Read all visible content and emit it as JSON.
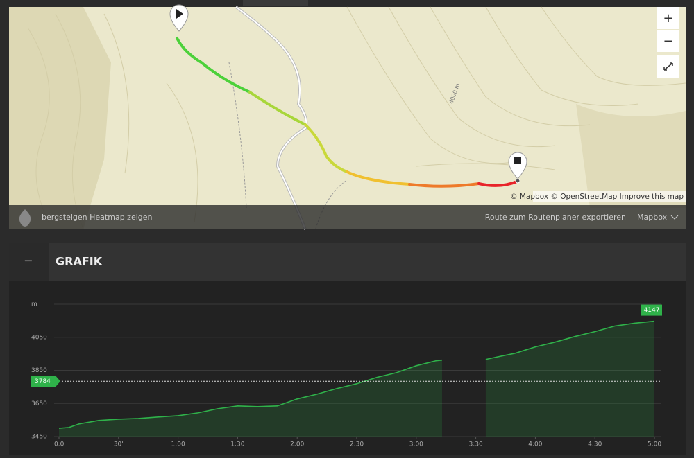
{
  "map": {
    "contour_label": "4000 m",
    "zoom_in": "+",
    "zoom_out": "−",
    "attribution": "© Mapbox © OpenStreetMap Improve this map",
    "heatmap_toggle": "bergsteigen Heatmap zeigen",
    "export_link": "Route zum Routenplaner exportieren",
    "style_menu": "Mapbox"
  },
  "panel": {
    "toggle": "−",
    "title": "GRAFIK"
  },
  "chart_data": {
    "type": "line",
    "x": [
      0,
      5,
      10,
      20,
      30,
      40,
      50,
      60,
      70,
      80,
      90,
      100,
      110,
      120,
      130,
      140,
      150,
      160,
      170,
      180,
      190,
      193,
      204,
      215,
      220,
      230,
      240,
      250,
      260,
      270,
      280,
      290,
      300
    ],
    "series": [
      {
        "color": "#2fb24a",
        "values": [
          3500,
          3505,
          3526,
          3547,
          3555,
          3559,
          3568,
          3576,
          3593,
          3618,
          3635,
          3631,
          3635,
          3677,
          3706,
          3740,
          3769,
          3807,
          3836,
          3878,
          3908,
          3912,
          null,
          3916,
          3929,
          3954,
          3992,
          4021,
          4055,
          4084,
          4118,
          4135,
          4147
        ]
      }
    ],
    "xlim": [
      0,
      300
    ],
    "xticks": [
      {
        "value": 0,
        "label": "0.0"
      },
      {
        "value": 30,
        "label": "30'"
      },
      {
        "value": 60,
        "label": "1:00"
      },
      {
        "value": 90,
        "label": "1:30"
      },
      {
        "value": 120,
        "label": "2:00"
      },
      {
        "value": 150,
        "label": "2:30"
      },
      {
        "value": 180,
        "label": "3:00"
      },
      {
        "value": 210,
        "label": "3:30"
      },
      {
        "value": 240,
        "label": "4:00"
      },
      {
        "value": 270,
        "label": "4:30"
      },
      {
        "value": 300,
        "label": "5:00"
      }
    ],
    "ylim": [
      3450,
      4250
    ],
    "yticks": [
      3450,
      3650,
      3850,
      4050,
      {
        "value": 4250,
        "label": "m"
      }
    ],
    "grid": true,
    "reference_value": 3784,
    "current_value": 4147
  }
}
